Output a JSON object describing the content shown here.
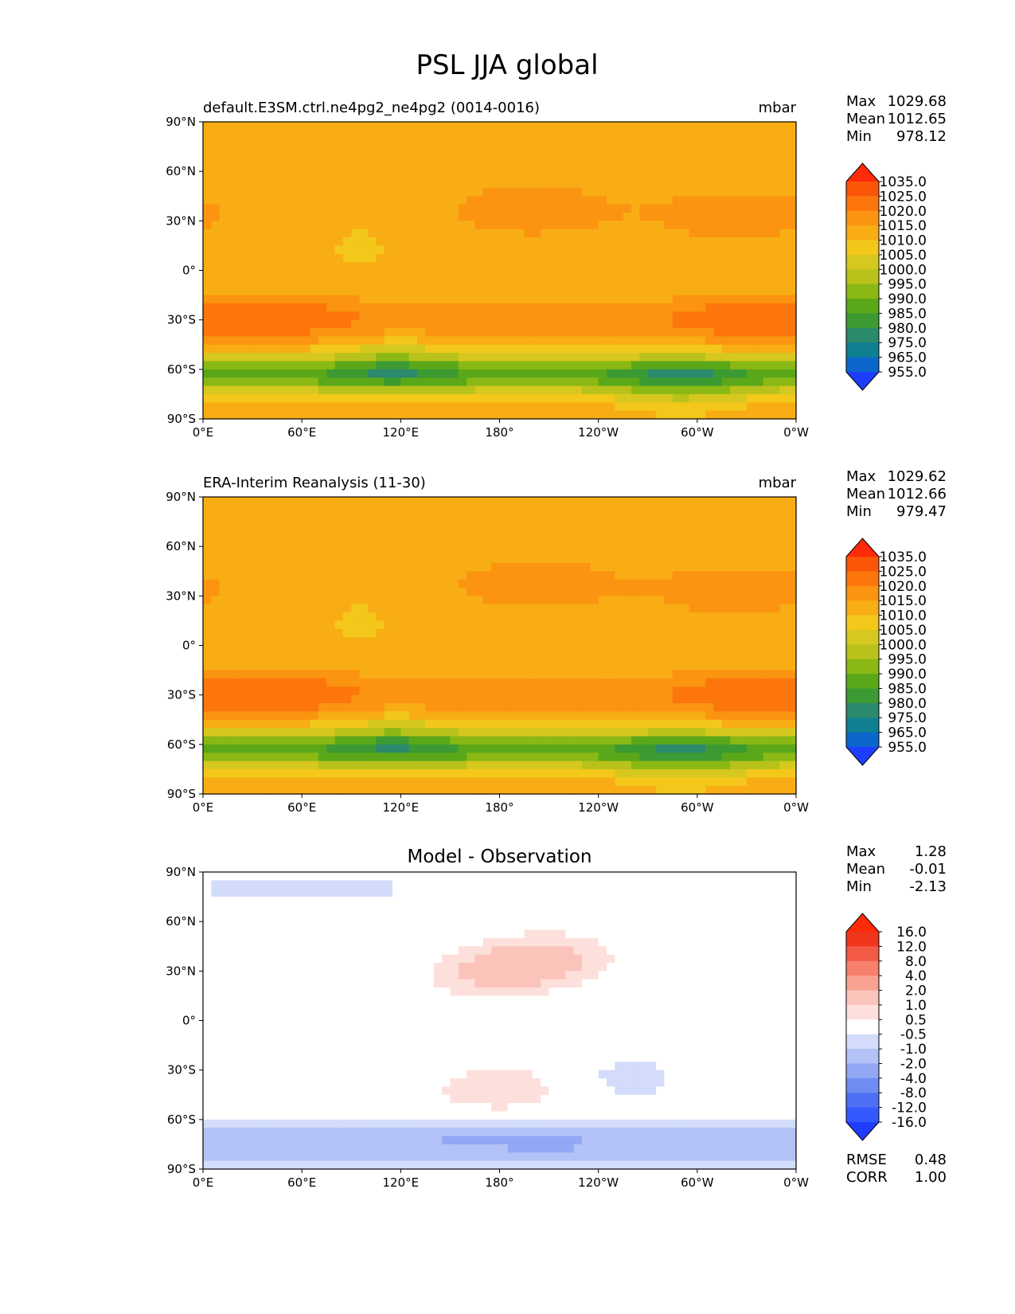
{
  "page_title": "PSL JJA global",
  "colors": {
    "abs_levels": [
      "#1f3dff",
      "#0b67cc",
      "#0f7f92",
      "#2b8a6c",
      "#3c9a33",
      "#5aa81a",
      "#8ab814",
      "#b8c21a",
      "#d6c81e",
      "#f3c81a",
      "#f9ad14",
      "#fb9410",
      "#fc760c",
      "#fb5508",
      "#ff2a0a"
    ],
    "diff_levels": [
      "#1f3dff",
      "#3558ff",
      "#4e70f4",
      "#6f8cf2",
      "#93a8f5",
      "#b3c2f7",
      "#d3dcfb",
      "#ffffff",
      "#fde0dc",
      "#fbc4bb",
      "#f9a291",
      "#f7806d",
      "#f35a45",
      "#f0351d",
      "#ff2a0a"
    ]
  },
  "panels": [
    {
      "id": "model",
      "title_left": "default.E3SM.ctrl.ne4pg2_ne4pg2 (0014-0016)",
      "title_center": "",
      "title_right": "mbar",
      "stats": [
        {
          "label": "Max",
          "value": "1029.68"
        },
        {
          "label": "Mean",
          "value": "1012.65"
        },
        {
          "label": "Min",
          "value": "978.12"
        }
      ],
      "colorbar_ticks": [
        "1035.0",
        "1025.0",
        "1020.0",
        "1015.0",
        "1010.0",
        "1005.0",
        "1000.0",
        "995.0",
        "990.0",
        "985.0",
        "980.0",
        "975.0",
        "965.0",
        "955.0"
      ],
      "extra_stats": []
    },
    {
      "id": "obs",
      "title_left": "ERA-Interim Reanalysis (11-30)",
      "title_center": "",
      "title_right": "mbar",
      "stats": [
        {
          "label": "Max",
          "value": "1029.62"
        },
        {
          "label": "Mean",
          "value": "1012.66"
        },
        {
          "label": "Min",
          "value": "979.47"
        }
      ],
      "colorbar_ticks": [
        "1035.0",
        "1025.0",
        "1020.0",
        "1015.0",
        "1010.0",
        "1005.0",
        "1000.0",
        "995.0",
        "990.0",
        "985.0",
        "980.0",
        "975.0",
        "965.0",
        "955.0"
      ],
      "extra_stats": []
    },
    {
      "id": "diff",
      "title_left": "",
      "title_center": "Model - Observation",
      "title_right": "",
      "stats": [
        {
          "label": "Max",
          "value": "1.28"
        },
        {
          "label": "Mean",
          "value": "-0.01"
        },
        {
          "label": "Min",
          "value": "-2.13"
        }
      ],
      "colorbar_ticks": [
        "16.0",
        "12.0",
        "8.0",
        "4.0",
        "2.0",
        "1.0",
        "0.5",
        "-0.5",
        "-1.0",
        "-2.0",
        "-4.0",
        "-8.0",
        "-12.0",
        "-16.0"
      ],
      "extra_stats": [
        {
          "label": "RMSE",
          "value": "0.48"
        },
        {
          "label": "CORR",
          "value": "1.00"
        }
      ]
    }
  ],
  "chart_data": {
    "type": "heatmap",
    "title": "PSL JJA global",
    "xlim": [
      0,
      360
    ],
    "ylim": [
      -90,
      90
    ],
    "xticks": [
      "0°E",
      "60°E",
      "120°E",
      "180°",
      "120°W",
      "60°W",
      "0°W"
    ],
    "yticks": [
      "90°N",
      "60°N",
      "30°N",
      "0°",
      "30°S",
      "60°S",
      "90°S"
    ],
    "maps": [
      {
        "panel": "model",
        "unit": "mbar",
        "levels": [
          955,
          965,
          975,
          980,
          985,
          990,
          995,
          1000,
          1005,
          1010,
          1015,
          1020,
          1025,
          1035
        ],
        "field_features": [
          {
            "lon": 95,
            "lat": 32,
            "value": 1000
          },
          {
            "lon": 200,
            "lat": 38,
            "value": 1027
          },
          {
            "lon": 322,
            "lat": 32,
            "value": 1026
          },
          {
            "lon": 50,
            "lat": -30,
            "value": 1026
          },
          {
            "lon": 330,
            "lat": -30,
            "value": 1026
          },
          {
            "lon": 115,
            "lat": -58,
            "value": 982
          },
          {
            "lon": 290,
            "lat": -68,
            "value": 978
          }
        ]
      },
      {
        "panel": "obs",
        "unit": "mbar",
        "levels": [
          955,
          965,
          975,
          980,
          985,
          990,
          995,
          1000,
          1005,
          1010,
          1015,
          1020,
          1025,
          1035
        ],
        "field_features": [
          {
            "lon": 95,
            "lat": 32,
            "value": 1000
          },
          {
            "lon": 205,
            "lat": 40,
            "value": 1027
          },
          {
            "lon": 322,
            "lat": 32,
            "value": 1026
          },
          {
            "lon": 50,
            "lat": -30,
            "value": 1026
          },
          {
            "lon": 330,
            "lat": -30,
            "value": 1026
          },
          {
            "lon": 115,
            "lat": -58,
            "value": 983
          },
          {
            "lon": 290,
            "lat": -68,
            "value": 979
          }
        ]
      },
      {
        "panel": "diff",
        "levels": [
          -16,
          -12,
          -8,
          -4,
          -2,
          -1,
          -0.5,
          0.5,
          1,
          2,
          4,
          8,
          12,
          16
        ],
        "field_features": [
          {
            "lon": 210,
            "lat": 38,
            "value": 1.2
          },
          {
            "lon": 175,
            "lat": 28,
            "value": 1.1
          },
          {
            "lon": 180,
            "lat": -42,
            "value": 1.0
          },
          {
            "lon": 60,
            "lat": 80,
            "value": -0.7
          },
          {
            "lon": 180,
            "lat": -75,
            "value": -1.5
          },
          {
            "lon": 60,
            "lat": -72,
            "value": -1.3
          },
          {
            "lon": 300,
            "lat": -75,
            "value": -1.4
          },
          {
            "lon": 260,
            "lat": -35,
            "value": -0.7
          }
        ]
      }
    ]
  }
}
